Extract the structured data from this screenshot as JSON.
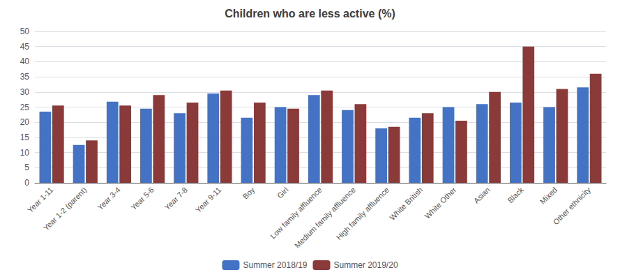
{
  "chart_data": {
    "type": "bar",
    "title": "Children who are less active (%)",
    "categories": [
      "Year 1-11",
      "Year 1-2 (parent)",
      "Year 3-4",
      "Year 5-6",
      "Year 7-8",
      "Year 9-11",
      "Boy",
      "Girl",
      "Low family affluence",
      "Medium family affluence",
      "High family affluence",
      "White British",
      "White Other",
      "Asian",
      "Black",
      "Mixed",
      "Other ethnicity"
    ],
    "series": [
      {
        "name": "Summer 2018/19",
        "color": "#4472C4",
        "values": [
          23.5,
          12.5,
          26.8,
          24.5,
          23.0,
          29.5,
          21.5,
          25.0,
          29.0,
          24.0,
          18.0,
          21.5,
          25.0,
          26.0,
          26.5,
          25.0,
          31.5
        ]
      },
      {
        "name": "Summer 2019/20",
        "color": "#8B3A3A",
        "values": [
          25.5,
          14.0,
          25.5,
          29.0,
          26.5,
          30.5,
          26.5,
          24.5,
          30.5,
          26.0,
          18.5,
          23.0,
          20.5,
          30.0,
          45.0,
          31.0,
          36.0
        ]
      }
    ],
    "ylim": [
      0,
      50
    ],
    "yticks": [
      0,
      5,
      10,
      15,
      20,
      25,
      30,
      35,
      40,
      45,
      50
    ],
    "grid": true,
    "legend": "bottom"
  }
}
